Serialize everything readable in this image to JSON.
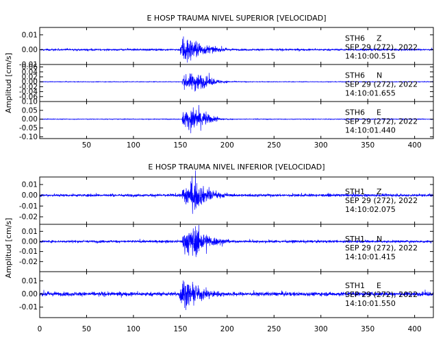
{
  "chart_data": [
    {
      "type": "line",
      "title": "E HOSP TRAUMA NIVEL SUPERIOR [VELOCIDAD]",
      "ylabel": "Amplitud [cm/s]",
      "xlim": [
        0,
        420
      ],
      "x_ticks": [
        "50",
        "100",
        "150",
        "200",
        "250",
        "300",
        "350",
        "400"
      ],
      "x_tick_values": [
        50,
        100,
        150,
        200,
        250,
        300,
        350,
        400
      ],
      "line_color": "#0000ff",
      "panels": [
        {
          "station": "STH6",
          "component": "Z",
          "date": "SEP 29 (272), 2022",
          "time": "14:10:00.515",
          "ylim": [
            -0.01,
            0.015
          ],
          "y_ticks": [
            "0.01",
            "0.00",
            "-0.01"
          ],
          "y_tick_values": [
            0.01,
            0.0,
            -0.01
          ],
          "signal": {
            "noise": 0.0008,
            "onset": 150,
            "peak": 0.013,
            "peak_time": 155,
            "decay": 18,
            "coda": 0.0012
          }
        },
        {
          "station": "STH6",
          "component": "N",
          "date": "SEP 29 (272), 2022",
          "time": "14:10:01.655",
          "ylim": [
            -0.08,
            0.07
          ],
          "y_ticks": [
            "0.06",
            "0.04",
            "0.02",
            "0.00",
            "-0.02",
            "-0.04",
            "-0.06"
          ],
          "y_tick_values": [
            0.06,
            0.04,
            0.02,
            0.0,
            -0.02,
            -0.04,
            -0.06
          ],
          "signal": {
            "noise": 0.002,
            "onset": 152,
            "peak": 0.05,
            "peak_time": 168,
            "decay": 14,
            "coda": 0.004
          }
        },
        {
          "station": "STH6",
          "component": "E",
          "date": "SEP 29 (272), 2022",
          "time": "14:10:01.440",
          "ylim": [
            -0.11,
            0.1
          ],
          "y_ticks": [
            "0.10",
            "0.05",
            "0.00",
            "-0.05",
            "-0.10"
          ],
          "y_tick_values": [
            0.1,
            0.05,
            0.0,
            -0.05,
            -0.1
          ],
          "signal": {
            "noise": 0.003,
            "onset": 152,
            "peak": 0.09,
            "peak_time": 168,
            "decay": 12,
            "coda": 0.005
          }
        }
      ]
    },
    {
      "type": "line",
      "title": "E HOSP TRAUMA NIVEL INFERIOR [VELOCIDAD]",
      "ylabel": "Amplitud [cm/s]",
      "xlim": [
        0,
        420
      ],
      "x_ticks": [
        "0",
        "50",
        "100",
        "150",
        "200",
        "250",
        "300",
        "350",
        "400"
      ],
      "x_tick_values": [
        0,
        50,
        100,
        150,
        200,
        250,
        300,
        350,
        400
      ],
      "line_color": "#0000ff",
      "panels": [
        {
          "station": "STH1",
          "component": "Z",
          "date": "SEP 29 (272), 2022",
          "time": "14:10:02.075",
          "ylim": [
            -0.027,
            0.017
          ],
          "y_ticks": [
            "0.01",
            "0.00",
            "-0.01",
            "-0.02"
          ],
          "y_tick_values": [
            0.01,
            0.0,
            -0.01,
            -0.02
          ],
          "signal": {
            "noise": 0.0015,
            "onset": 152,
            "peak": 0.018,
            "peak_time": 165,
            "decay": 16,
            "coda": 0.002
          }
        },
        {
          "station": "STH1",
          "component": "N",
          "date": "SEP 29 (272), 2022",
          "time": "14:10:01.415",
          "ylim": [
            -0.03,
            0.017
          ],
          "y_ticks": [
            "0.01",
            "0.00",
            "-0.01",
            "-0.02"
          ],
          "y_tick_values": [
            0.01,
            0.0,
            -0.01,
            -0.02
          ],
          "signal": {
            "noise": 0.0015,
            "onset": 152,
            "peak": 0.02,
            "peak_time": 166,
            "decay": 16,
            "coda": 0.0022
          }
        },
        {
          "station": "STH1",
          "component": "E",
          "date": "SEP 29 (272), 2022",
          "time": "14:10:01.550",
          "ylim": [
            -0.018,
            0.017
          ],
          "y_ticks": [
            "0.01",
            "0.00",
            "-0.01"
          ],
          "y_tick_values": [
            0.01,
            0.0,
            -0.01
          ],
          "signal": {
            "noise": 0.0018,
            "onset": 149,
            "peak": 0.014,
            "peak_time": 153,
            "decay": 22,
            "coda": 0.0025
          }
        }
      ]
    }
  ]
}
